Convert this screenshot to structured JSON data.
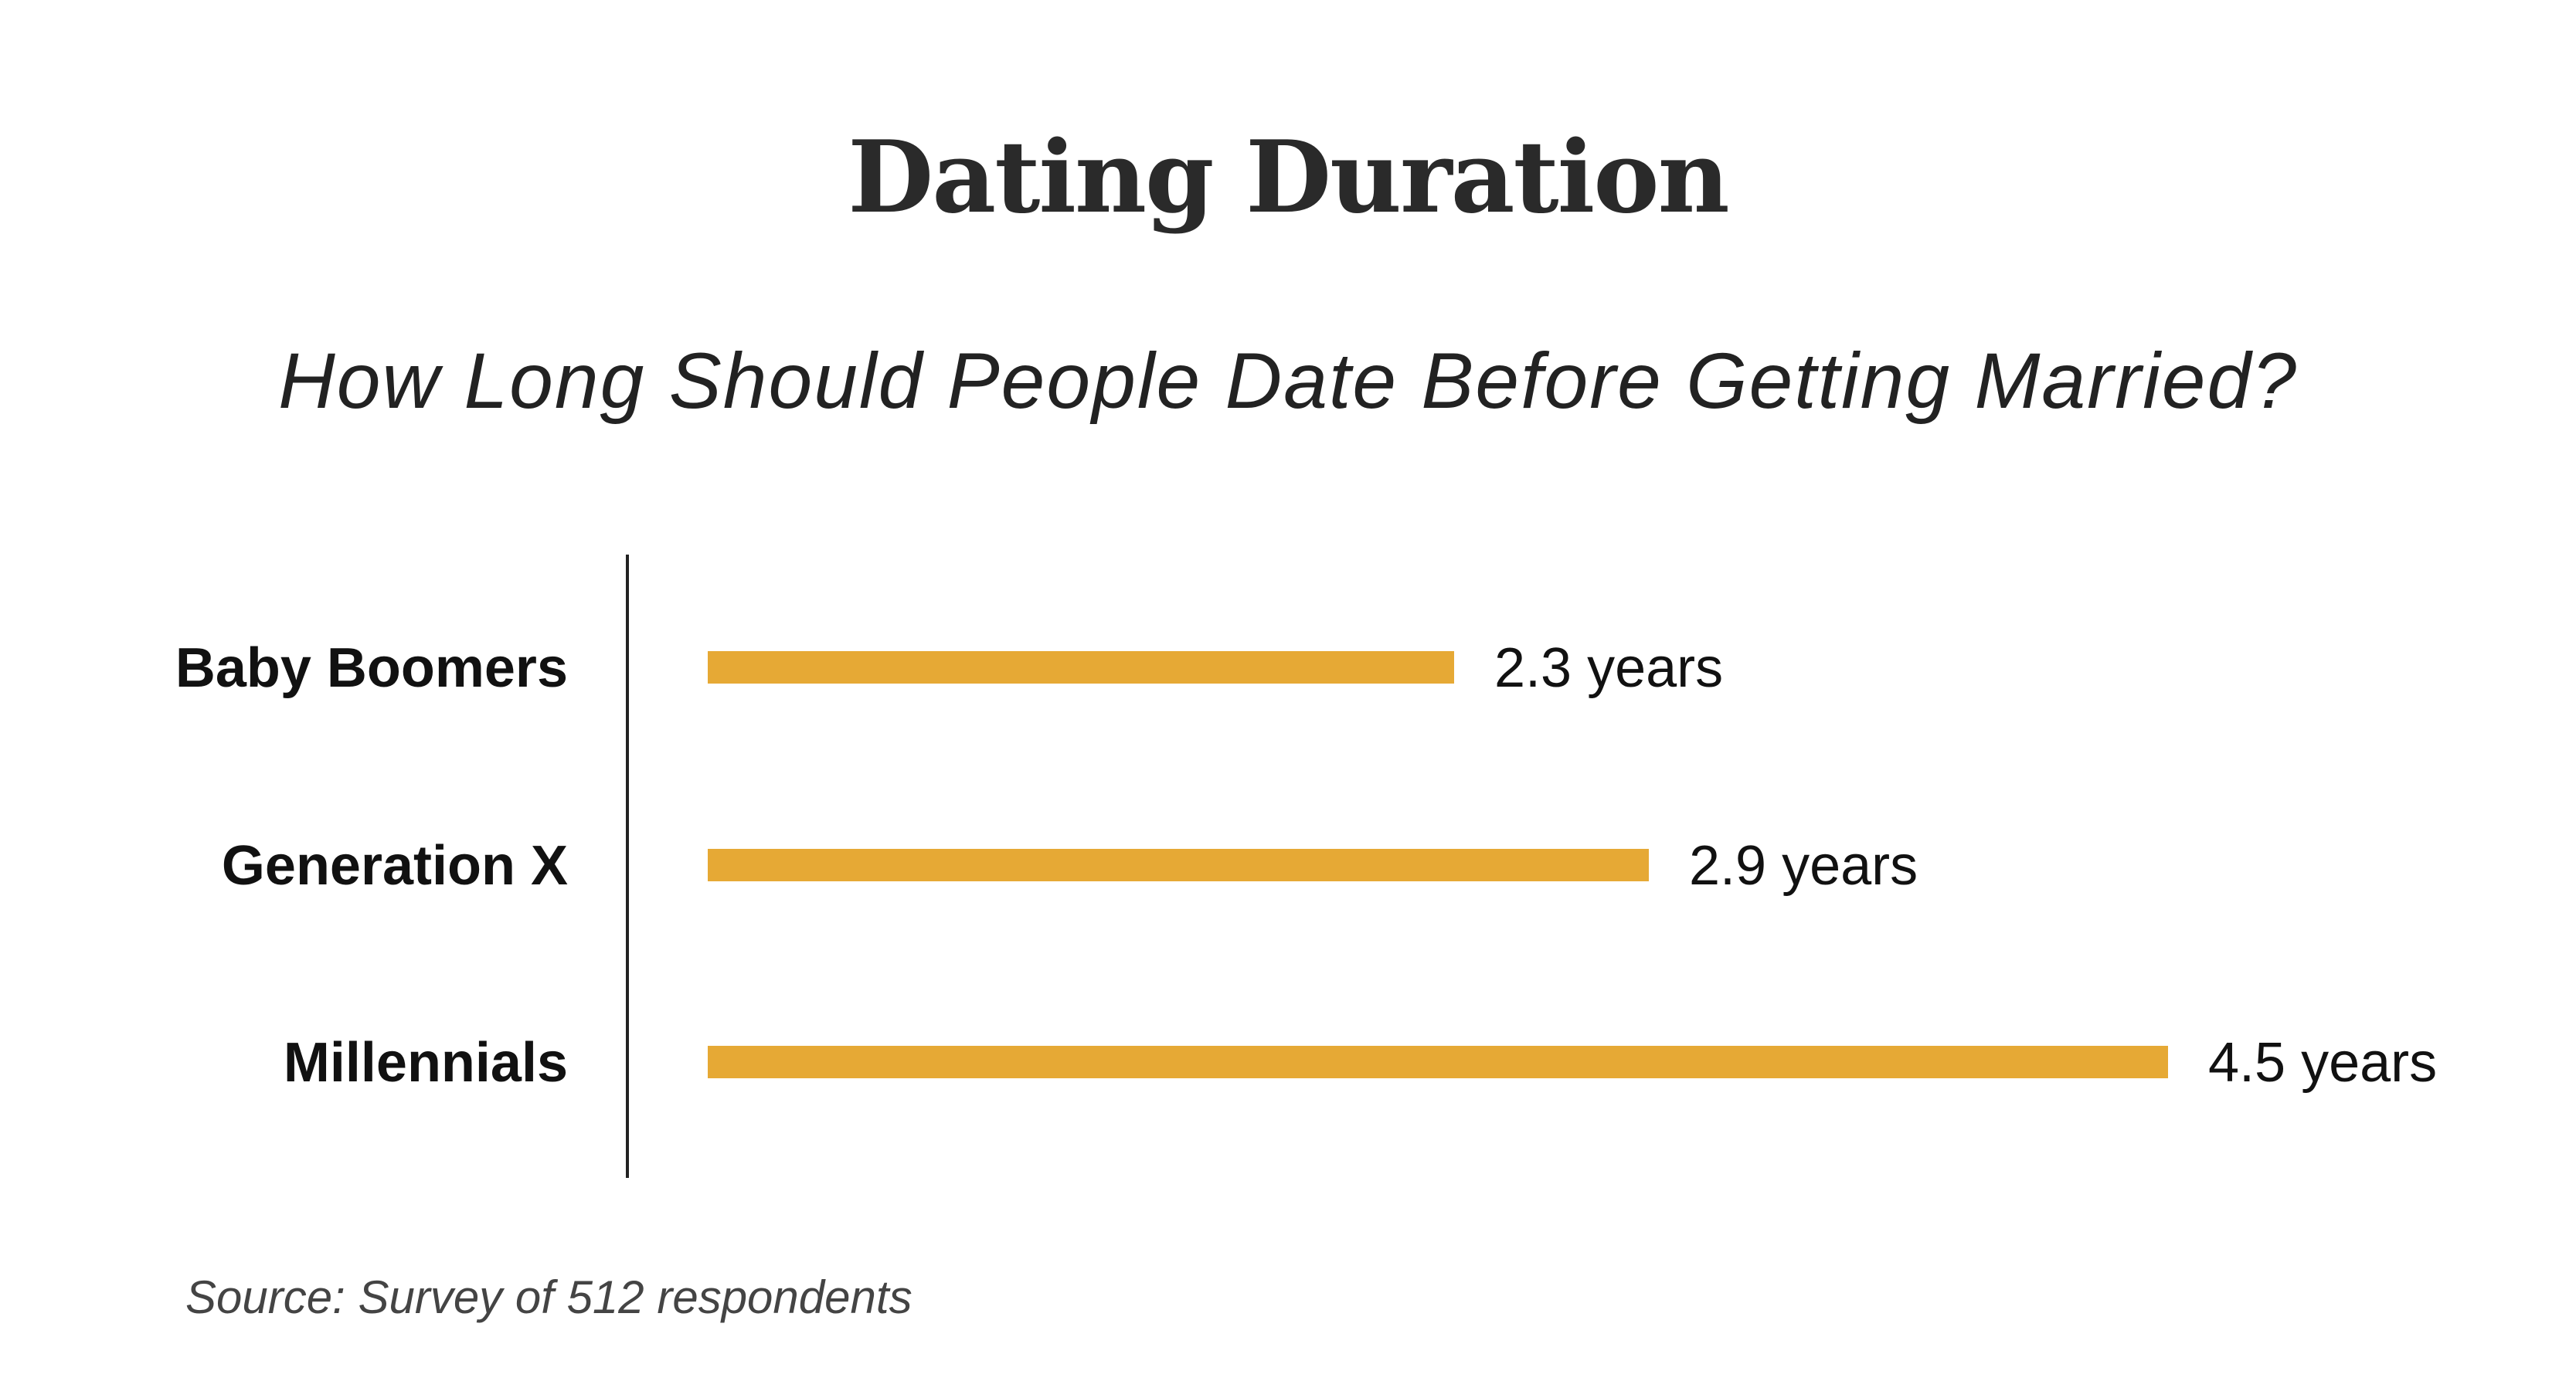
{
  "title": "Dating Duration",
  "subtitle": "How Long Should People Date Before Getting Married?",
  "source": "Source: Survey of 512 respondents",
  "colors": {
    "bar": "#E6A935",
    "text": "#111111",
    "axis": "#222222",
    "title": "#2a2a2a"
  },
  "chart_data": {
    "type": "bar",
    "orientation": "horizontal",
    "categories": [
      "Baby Boomers",
      "Generation X",
      "Millennials"
    ],
    "values": [
      2.3,
      2.9,
      4.5
    ],
    "value_labels": [
      "2.3 years",
      "2.9 years",
      "4.5 years"
    ],
    "unit": "years",
    "grid": false,
    "legend": "none",
    "xlim": [
      0,
      4.5
    ]
  }
}
